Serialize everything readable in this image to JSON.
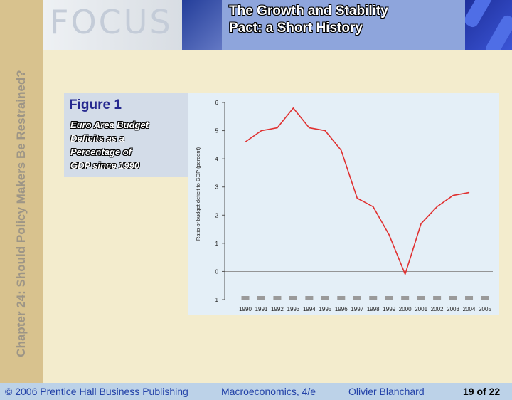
{
  "sidebar": {
    "chapter_title": "Chapter 24: Should Policy Makers Be Restrained?"
  },
  "header": {
    "focus_label": "FOCUS",
    "title_line1": "The Growth and Stability",
    "title_line2": "Pact: a Short History"
  },
  "figure": {
    "label": "Figure 1",
    "caption_lines": [
      "Euro Area Budget",
      "Deficits as a",
      "Percentage of",
      "GDP since 1990"
    ]
  },
  "chart_data": {
    "type": "line",
    "title": "",
    "xlabel": "",
    "ylabel": "Ratio of budget deficit to GDP (percent)",
    "x": [
      1990,
      1991,
      1992,
      1993,
      1994,
      1995,
      1996,
      1997,
      1998,
      1999,
      2000,
      2001,
      2002,
      2003,
      2004
    ],
    "x_ticks": [
      "1990",
      "1991",
      "1992",
      "1993",
      "1994",
      "1995",
      "1996",
      "1997",
      "1998",
      "1999",
      "2000",
      "2001",
      "2002",
      "2003",
      "2004",
      "2005"
    ],
    "series": [
      {
        "values": [
          4.6,
          5.0,
          5.1,
          5.8,
          5.1,
          5.0,
          4.3,
          2.6,
          2.3,
          1.3,
          -0.1,
          1.7,
          2.3,
          2.7,
          2.8
        ]
      }
    ],
    "y_ticks": [
      "6",
      "5",
      "4",
      "3",
      "2",
      "1",
      "0",
      "−1"
    ],
    "ylim": [
      -1,
      6
    ],
    "xlim": [
      1990,
      2005
    ],
    "grid": false,
    "zero_line": true,
    "line_color": "#e03030"
  },
  "footer": {
    "copyright": "© 2006 Prentice Hall Business Publishing",
    "book": "Macroeconomics, 4/e",
    "author": "Olivier Blanchard",
    "page": "19 of 22"
  }
}
